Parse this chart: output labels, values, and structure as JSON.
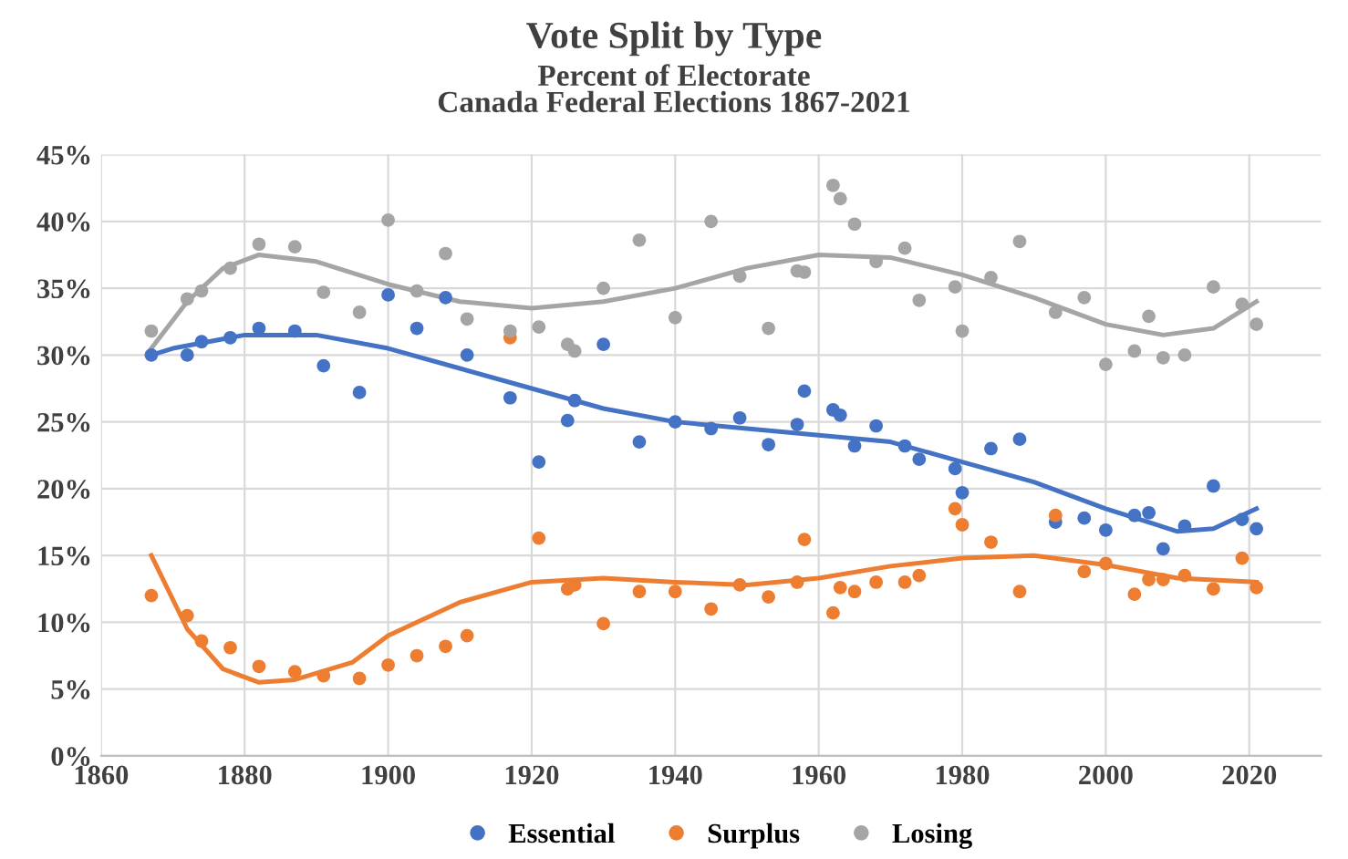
{
  "chart_data": {
    "type": "scatter",
    "title": "Vote Split by Type",
    "subtitle": "Percent of Electorate\nCanada Federal Elections 1867-2021",
    "x": [
      1867,
      1872,
      1874,
      1878,
      1882,
      1887,
      1891,
      1896,
      1900,
      1904,
      1908,
      1911,
      1917,
      1921,
      1925,
      1926,
      1930,
      1935,
      1940,
      1945,
      1949,
      1953,
      1957,
      1958,
      1962,
      1963,
      1965,
      1968,
      1972,
      1974,
      1979,
      1980,
      1984,
      1988,
      1993,
      1997,
      2000,
      2004,
      2006,
      2008,
      2011,
      2015,
      2019,
      2021
    ],
    "series": [
      {
        "name": "Essential",
        "color": "#4472c4",
        "values": [
          30,
          30,
          31,
          31.3,
          32,
          31.8,
          29.2,
          27.2,
          34.5,
          32,
          34.3,
          30,
          26.8,
          22,
          25.1,
          26.6,
          30.8,
          23.5,
          25,
          24.5,
          25.3,
          23.3,
          24.8,
          27.3,
          25.9,
          25.5,
          23.2,
          24.7,
          23.2,
          22.2,
          21.5,
          19.7,
          23,
          23.7,
          17.5,
          17.8,
          16.9,
          18,
          18.2,
          15.5,
          17.2,
          20.2,
          17.7,
          17
        ]
      },
      {
        "name": "Surplus",
        "color": "#ed7d31",
        "values": [
          12,
          10.5,
          8.6,
          8.1,
          6.7,
          6.3,
          6,
          5.8,
          6.8,
          7.5,
          8.2,
          9,
          31.3,
          16.3,
          12.5,
          12.8,
          9.9,
          12.3,
          12.3,
          11,
          12.8,
          11.9,
          13,
          16.2,
          10.7,
          12.6,
          12.3,
          13,
          13,
          13.5,
          18.5,
          17.3,
          16,
          12.3,
          18,
          13.8,
          14.4,
          12.1,
          13.2,
          13.2,
          13.5,
          12.5,
          14.8,
          12.6
        ]
      },
      {
        "name": "Losing",
        "color": "#a5a5a5",
        "values": [
          31.8,
          34.2,
          34.8,
          36.5,
          38.3,
          38.1,
          34.7,
          33.2,
          40.1,
          34.8,
          37.6,
          32.7,
          31.8,
          32.1,
          30.8,
          30.3,
          35,
          38.6,
          32.8,
          40,
          35.9,
          32,
          36.3,
          36.2,
          42.7,
          41.7,
          39.8,
          37,
          38,
          34.1,
          35.1,
          31.8,
          35.8,
          38.5,
          33.2,
          34.3,
          29.3,
          30.3,
          32.9,
          29.8,
          30,
          35.1,
          33.8,
          32.3
        ]
      },
      {
        "type": "line",
        "marker": "none",
        "color": "#4472c4",
        "x": [
          1867,
          1870,
          1880,
          1890,
          1900,
          1910,
          1920,
          1930,
          1940,
          1950,
          1960,
          1970,
          1980,
          1990,
          2000,
          2010,
          2015,
          2021
        ],
        "values": [
          30,
          30.5,
          31.5,
          31.5,
          30.5,
          29,
          27.5,
          26,
          25,
          24.5,
          24,
          23.5,
          22,
          20.5,
          18.5,
          16.8,
          17,
          18.5
        ]
      },
      {
        "type": "line",
        "marker": "none",
        "color": "#ed7d31",
        "x": [
          1867,
          1872,
          1877,
          1882,
          1887,
          1895,
          1900,
          1910,
          1920,
          1930,
          1940,
          1950,
          1960,
          1970,
          1980,
          1990,
          2000,
          2010,
          2021
        ],
        "values": [
          15,
          9.5,
          6.5,
          5.5,
          5.7,
          7,
          9,
          11.5,
          13,
          13.3,
          13,
          12.8,
          13.3,
          14.2,
          14.8,
          15,
          14.3,
          13.3,
          13
        ]
      },
      {
        "type": "line",
        "marker": "none",
        "color": "#a5a5a5",
        "x": [
          1867,
          1872,
          1877,
          1882,
          1890,
          1900,
          1910,
          1920,
          1930,
          1940,
          1950,
          1960,
          1970,
          1980,
          1990,
          2000,
          2008,
          2015,
          2021
        ],
        "values": [
          30.5,
          34,
          36.5,
          37.5,
          37,
          35.3,
          34,
          33.5,
          34,
          35,
          36.5,
          37.5,
          37.3,
          36,
          34.3,
          32.3,
          31.5,
          32,
          34
        ]
      }
    ],
    "xlim": [
      1860,
      2030
    ],
    "xticks": [
      1860,
      1880,
      1900,
      1920,
      1940,
      1960,
      1980,
      2000,
      2020
    ],
    "ylim": [
      0,
      45
    ],
    "yticks": [
      {
        "value": 0,
        "label": "0%"
      },
      {
        "value": 5,
        "label": "5%"
      },
      {
        "value": 10,
        "label": "10%"
      },
      {
        "value": 15,
        "label": "15%"
      },
      {
        "value": 20,
        "label": "20%"
      },
      {
        "value": 25,
        "label": "25%"
      },
      {
        "value": 30,
        "label": "30%"
      },
      {
        "value": 35,
        "label": "35%"
      },
      {
        "value": 40,
        "label": "40%"
      },
      {
        "value": 45,
        "label": "45%"
      }
    ],
    "grid": true,
    "legend": "bottom",
    "marker": "circle"
  }
}
